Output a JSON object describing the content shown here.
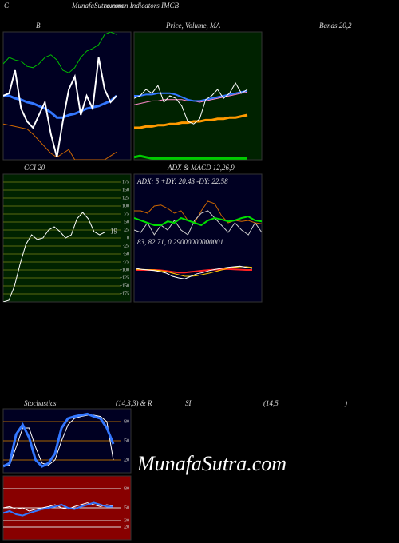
{
  "header": {
    "letter": "C",
    "site": "MunafaSutra.com",
    "subtitle": "common Indicators IMCB"
  },
  "watermark": "MunafaSutra.com",
  "chart_data": [
    {
      "type": "line",
      "title": "B",
      "subtitle": "Bands 20,2",
      "background": "#000022",
      "ylim": [
        0,
        100
      ],
      "series": [
        {
          "color": "#00bb00",
          "width": 1,
          "values": [
            75,
            80,
            78,
            77,
            73,
            72,
            75,
            80,
            82,
            78,
            70,
            68,
            72,
            80,
            85,
            87,
            90,
            98,
            100,
            98
          ]
        },
        {
          "color": "#cc6600",
          "width": 1,
          "values": [
            28,
            27,
            26,
            25,
            24,
            20,
            15,
            10,
            5,
            2,
            5,
            8,
            0,
            0,
            0,
            0,
            0,
            0,
            3,
            6
          ]
        },
        {
          "color": "#3377ff",
          "width": 3,
          "values": [
            50,
            50,
            48,
            47,
            45,
            44,
            42,
            40,
            37,
            33,
            33,
            35,
            36,
            38,
            40,
            41,
            42,
            44,
            46,
            50
          ]
        },
        {
          "color": "#ffffff",
          "width": 2,
          "values": [
            50,
            52,
            70,
            40,
            30,
            25,
            35,
            45,
            20,
            2,
            30,
            55,
            65,
            35,
            50,
            40,
            80,
            55,
            45,
            50
          ]
        }
      ]
    },
    {
      "type": "line",
      "title": "Price, Volume, MA",
      "background": "#002200",
      "ylim": [
        0,
        100
      ],
      "series": [
        {
          "color": "#00cc00",
          "width": 3,
          "values": [
            2,
            3,
            2,
            1,
            1,
            1,
            1,
            1,
            1,
            1,
            1,
            1,
            1,
            1,
            1,
            1,
            1,
            1,
            1,
            1
          ]
        },
        {
          "color": "#ff9900",
          "width": 3,
          "values": [
            25,
            25,
            26,
            26,
            27,
            27,
            28,
            28,
            29,
            29,
            30,
            30,
            31,
            31,
            32,
            32,
            33,
            33,
            34,
            35
          ]
        },
        {
          "color": "#ff88cc",
          "width": 1,
          "values": [
            43,
            44,
            45,
            46,
            46,
            47,
            47,
            47,
            47,
            46,
            46,
            45,
            46,
            47,
            48,
            49,
            50,
            51,
            52,
            53
          ]
        },
        {
          "color": "#3377ff",
          "width": 2,
          "values": [
            50,
            50,
            51,
            51,
            52,
            52,
            52,
            51,
            49,
            47,
            46,
            46,
            47,
            48,
            49,
            50,
            51,
            52,
            53,
            54
          ]
        },
        {
          "color": "#ffffff",
          "width": 1,
          "values": [
            48,
            50,
            55,
            52,
            58,
            45,
            50,
            48,
            42,
            30,
            28,
            32,
            47,
            50,
            55,
            48,
            52,
            60,
            52,
            55
          ]
        }
      ]
    },
    {
      "type": "line",
      "title": "CCI 20",
      "background": "#002200",
      "grid_color": "#5a6a10",
      "ylim": [
        -200,
        200
      ],
      "yticks": [
        175,
        150,
        125,
        100,
        75,
        50,
        25,
        0,
        -25,
        -50,
        -75,
        -100,
        -125,
        -150,
        -175
      ],
      "series": [
        {
          "color": "#ffffff",
          "width": 1,
          "label_last": true,
          "values": [
            -200,
            -195,
            -150,
            -80,
            -20,
            10,
            -5,
            0,
            25,
            35,
            20,
            0,
            10,
            60,
            80,
            60,
            20,
            10,
            19
          ]
        }
      ]
    },
    {
      "type": "line",
      "title": "ADX  & MACD 12,26,9",
      "annotation": "ADX: 5 +DY: 20.43 -DY: 22.58",
      "background": "#000022",
      "ylim": [
        0,
        100
      ],
      "series": [
        {
          "color": "#cc6600",
          "width": 1,
          "values": [
            60,
            60,
            55,
            70,
            72,
            65,
            55,
            60,
            40,
            35,
            60,
            80,
            75,
            50,
            35,
            40,
            38,
            40,
            35,
            33
          ]
        },
        {
          "color": "#cccccc",
          "width": 1,
          "values": [
            20,
            15,
            35,
            10,
            30,
            20,
            40,
            20,
            10,
            40,
            55,
            60,
            45,
            30,
            15,
            35,
            20,
            10,
            35,
            15
          ]
        },
        {
          "color": "#00dd00",
          "width": 2,
          "values": [
            45,
            40,
            35,
            30,
            30,
            38,
            35,
            45,
            40,
            35,
            30,
            40,
            45,
            42,
            38,
            40,
            45,
            48,
            40,
            38
          ]
        }
      ]
    },
    {
      "type": "line",
      "annotation": "83, 82.71, 0.29000000000001",
      "ylim": [
        0,
        100
      ],
      "series": [
        {
          "color": "#ff2222",
          "width": 2,
          "values": [
            50,
            50,
            50,
            50,
            49,
            47,
            44,
            42,
            42,
            44,
            46,
            48,
            50,
            51,
            52,
            53,
            52,
            51,
            50,
            50
          ]
        },
        {
          "color": "#ffcc00",
          "width": 1,
          "values": [
            52,
            52,
            51,
            50,
            48,
            45,
            40,
            35,
            30,
            30,
            32,
            36,
            40,
            45,
            50,
            55,
            58,
            60,
            60,
            58
          ]
        },
        {
          "color": "#ffffff",
          "width": 1,
          "values": [
            55,
            52,
            50,
            48,
            45,
            40,
            30,
            25,
            22,
            30,
            38,
            42,
            48,
            52,
            55,
            58,
            60,
            62,
            58,
            55
          ]
        }
      ]
    },
    {
      "type": "line",
      "title_parts": [
        "Stochastics",
        "(14,3,3) & R",
        "SI",
        "(14,5",
        ")"
      ],
      "background": "#000022",
      "grid_color": "#aa6600",
      "ylim": [
        0,
        100
      ],
      "yticks": [
        80,
        50,
        20
      ],
      "series": [
        {
          "color": "#ffffff",
          "width": 1,
          "values": [
            12,
            12,
            40,
            70,
            70,
            40,
            15,
            12,
            20,
            50,
            75,
            85,
            88,
            90,
            90,
            88,
            80,
            20
          ]
        },
        {
          "color": "#3377ff",
          "width": 3,
          "values": [
            10,
            15,
            60,
            75,
            55,
            20,
            10,
            15,
            30,
            70,
            85,
            88,
            90,
            92,
            88,
            85,
            70,
            45
          ]
        }
      ]
    },
    {
      "type": "line",
      "background": "#880000",
      "grid_color": "#dddddd",
      "ylim": [
        0,
        100
      ],
      "yticks": [
        80,
        50,
        30,
        20
      ],
      "series": [
        {
          "color": "#ffffff",
          "width": 1,
          "values": [
            50,
            52,
            48,
            50,
            45,
            48,
            50,
            52,
            55,
            50,
            48,
            52,
            55,
            58,
            55,
            52,
            55,
            53
          ]
        },
        {
          "color": "#3377ff",
          "width": 2,
          "values": [
            42,
            45,
            40,
            38,
            42,
            45,
            48,
            50,
            52,
            55,
            50,
            48,
            52,
            55,
            58,
            55,
            52,
            52
          ]
        }
      ]
    }
  ]
}
